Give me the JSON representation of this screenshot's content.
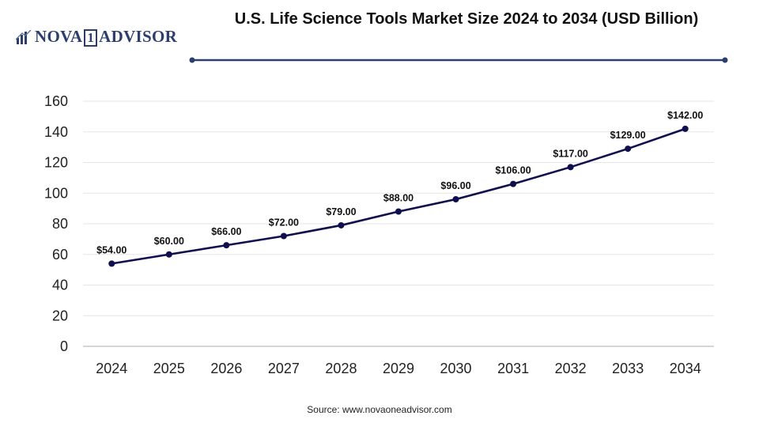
{
  "brand": {
    "name": "NOVA",
    "number": "1",
    "suffix": "ADVISOR"
  },
  "colors": {
    "line": "#0f0f4d",
    "grid": "#e6e6e6",
    "brand": "#2c3e6b"
  },
  "source": "Source: www.novaoneadvisor.com",
  "chart_data": {
    "type": "line",
    "title": "U.S. Life Science Tools Market Size 2024 to 2034 (USD Billion)",
    "xlabel": "",
    "ylabel": "",
    "categories": [
      "2024",
      "2025",
      "2026",
      "2027",
      "2028",
      "2029",
      "2030",
      "2031",
      "2032",
      "2033",
      "2034"
    ],
    "series": [
      {
        "values": [
          54,
          60,
          66,
          72,
          79,
          88,
          96,
          106,
          117,
          129,
          142
        ],
        "labels": [
          "$54.00",
          "$60.00",
          "$66.00",
          "$72.00",
          "$79.00",
          "$88.00",
          "$96.00",
          "$106.00",
          "$117.00",
          "$129.00",
          "$142.00"
        ]
      }
    ],
    "ylim": [
      0,
      160
    ],
    "yticks": [
      0,
      20,
      40,
      60,
      80,
      100,
      120,
      140,
      160
    ],
    "grid": true,
    "legend": "none"
  }
}
